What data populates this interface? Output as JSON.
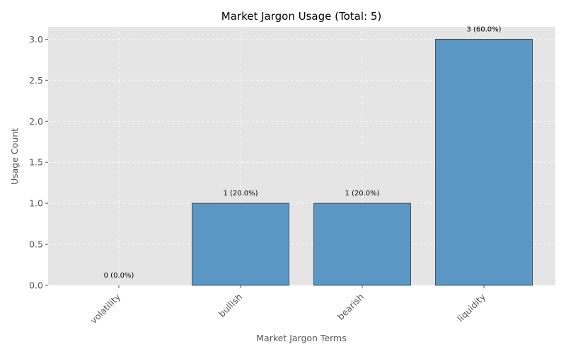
{
  "chart_data": {
    "type": "bar",
    "title": "Market Jargon Usage (Total: 5)",
    "xlabel": "Market Jargon Terms",
    "ylabel": "Usage Count",
    "categories": [
      "volatility",
      "bullish",
      "bearish",
      "liquidity"
    ],
    "values": [
      0,
      1,
      1,
      3
    ],
    "data_labels": [
      "0 (0.0%)",
      "1 (20.0%)",
      "1 (20.0%)",
      "3 (60.0%)"
    ],
    "ylim": [
      0,
      3.15
    ],
    "yticks": [
      0.0,
      0.5,
      1.0,
      1.5,
      2.0,
      2.5,
      3.0
    ],
    "ytick_labels": [
      "0.0",
      "0.5",
      "1.0",
      "1.5",
      "2.0",
      "2.5",
      "3.0"
    ],
    "grid": true,
    "colors": {
      "bar": "#5b97c4",
      "plot_background": "#e5e5e5"
    }
  }
}
